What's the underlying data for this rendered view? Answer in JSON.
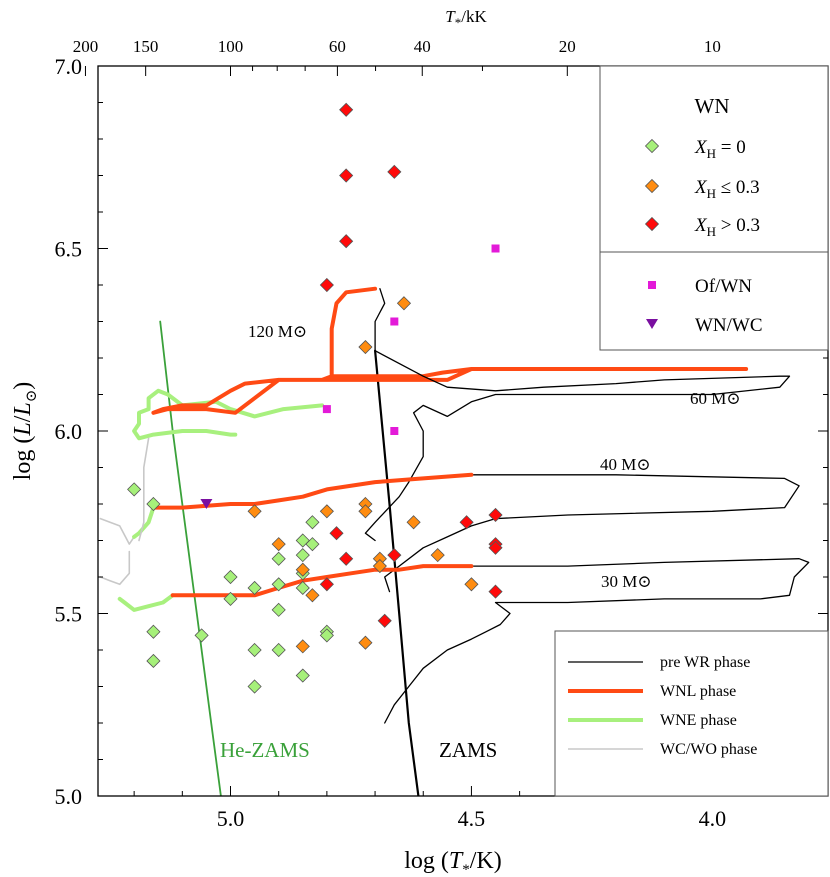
{
  "chart_data": {
    "type": "scatter",
    "title": "",
    "xlabel": "log (T*/K)",
    "ylabel": "log (L/L⊙)",
    "top_xlabel": "T*/kK",
    "xlim": [
      5.275,
      3.76
    ],
    "ylim": [
      5.0,
      7.0
    ],
    "x_ticks": [
      {
        "v": 5.0,
        "label": "5.0"
      },
      {
        "v": 4.5,
        "label": "4.5"
      },
      {
        "v": 4.0,
        "label": "4.0"
      }
    ],
    "y_ticks": [
      {
        "v": 5.0,
        "label": "5.0"
      },
      {
        "v": 5.5,
        "label": "5.5"
      },
      {
        "v": 6.0,
        "label": "6.0"
      },
      {
        "v": 6.5,
        "label": "6.5"
      },
      {
        "v": 7.0,
        "label": "7.0"
      }
    ],
    "top_ticks": [
      {
        "kK": 200,
        "label": "200"
      },
      {
        "kK": 150,
        "label": "150"
      },
      {
        "kK": 100,
        "label": "100"
      },
      {
        "kK": 60,
        "label": "60"
      },
      {
        "kK": 40,
        "label": "40"
      },
      {
        "kK": 20,
        "label": "20"
      },
      {
        "kK": 10,
        "label": "10"
      }
    ],
    "series": [
      {
        "name": "XH = 0",
        "marker": "diamond",
        "color": "#a6f07a",
        "points": [
          [
            5.2,
            5.84
          ],
          [
            5.16,
            5.8
          ],
          [
            5.16,
            5.45
          ],
          [
            5.16,
            5.37
          ],
          [
            5.06,
            5.44
          ],
          [
            5.0,
            5.6
          ],
          [
            5.0,
            5.54
          ],
          [
            4.95,
            5.57
          ],
          [
            4.95,
            5.4
          ],
          [
            4.95,
            5.3
          ],
          [
            4.9,
            5.58
          ],
          [
            4.9,
            5.51
          ],
          [
            4.9,
            5.4
          ],
          [
            4.9,
            5.65
          ],
          [
            4.85,
            5.7
          ],
          [
            4.85,
            5.66
          ],
          [
            4.85,
            5.61
          ],
          [
            4.85,
            5.57
          ],
          [
            4.85,
            5.33
          ],
          [
            4.83,
            5.75
          ],
          [
            4.83,
            5.69
          ],
          [
            4.8,
            5.45
          ],
          [
            4.8,
            5.44
          ]
        ]
      },
      {
        "name": "XH ≤ 0.3",
        "marker": "diamond",
        "color": "#ff8c10",
        "points": [
          [
            4.95,
            5.78
          ],
          [
            4.9,
            5.69
          ],
          [
            4.85,
            5.62
          ],
          [
            4.85,
            5.41
          ],
          [
            4.83,
            5.55
          ],
          [
            4.8,
            5.78
          ],
          [
            4.72,
            6.23
          ],
          [
            4.72,
            5.8
          ],
          [
            4.72,
            5.78
          ],
          [
            4.72,
            5.42
          ],
          [
            4.69,
            5.65
          ],
          [
            4.69,
            5.63
          ],
          [
            4.64,
            6.35
          ],
          [
            4.62,
            5.75
          ],
          [
            4.57,
            5.66
          ],
          [
            4.5,
            5.58
          ]
        ]
      },
      {
        "name": "XH > 0.3",
        "marker": "diamond",
        "color": "#ff0a0a",
        "points": [
          [
            4.76,
            6.88
          ],
          [
            4.76,
            6.7
          ],
          [
            4.66,
            6.71
          ],
          [
            4.76,
            6.52
          ],
          [
            4.8,
            6.4
          ],
          [
            4.78,
            5.72
          ],
          [
            4.76,
            5.65
          ],
          [
            4.8,
            5.58
          ],
          [
            4.68,
            5.48
          ],
          [
            4.66,
            5.66
          ],
          [
            4.51,
            5.75
          ],
          [
            4.45,
            5.77
          ],
          [
            4.45,
            5.69
          ],
          [
            4.45,
            5.68
          ],
          [
            4.45,
            5.56
          ]
        ]
      },
      {
        "name": "Of/WN",
        "marker": "square",
        "color": "#e31ad8",
        "points": [
          [
            4.45,
            6.5
          ],
          [
            4.66,
            6.3
          ],
          [
            4.8,
            6.06
          ],
          [
            4.66,
            6.0
          ]
        ]
      },
      {
        "name": "WN/WC",
        "marker": "triangle-down",
        "color": "#7a0fa0",
        "points": [
          [
            5.05,
            5.8
          ]
        ]
      }
    ],
    "track_styles": {
      "pre WR phase": {
        "color": "#000000",
        "width": 1.3
      },
      "WNL phase": {
        "color": "#ff4a14",
        "width": 4
      },
      "WNE phase": {
        "color": "#a8f07e",
        "width": 4
      },
      "WC/WO phase": {
        "color": "#c8c8c8",
        "width": 1.6
      }
    },
    "tracks": [
      {
        "mass": "120",
        "pre_wr": [
          [
            4.7,
            6.22
          ],
          [
            4.7,
            6.3
          ],
          [
            4.68,
            6.35
          ],
          [
            4.69,
            6.39
          ]
        ],
        "wnl": [
          [
            4.7,
            6.39
          ],
          [
            4.76,
            6.38
          ],
          [
            4.78,
            6.35
          ],
          [
            4.79,
            6.28
          ],
          [
            4.79,
            6.2
          ],
          [
            4.79,
            6.15
          ],
          [
            4.81,
            6.14
          ],
          [
            4.9,
            6.14
          ],
          [
            4.97,
            6.13
          ],
          [
            5.0,
            6.11
          ],
          [
            5.05,
            6.07
          ],
          [
            5.1,
            6.07
          ],
          [
            5.14,
            6.06
          ],
          [
            5.16,
            6.05
          ],
          [
            5.13,
            6.06
          ],
          [
            5.05,
            6.06
          ],
          [
            4.99,
            6.05
          ],
          [
            4.9,
            6.14
          ],
          [
            4.85,
            6.14
          ],
          [
            4.7,
            6.14
          ],
          [
            4.55,
            6.14
          ],
          [
            4.5,
            6.17
          ],
          [
            4.3,
            6.17
          ],
          [
            4.1,
            6.17
          ],
          [
            3.93,
            6.17
          ],
          [
            4.2,
            6.17
          ],
          [
            4.5,
            6.17
          ],
          [
            4.56,
            6.16
          ],
          [
            4.6,
            6.15
          ],
          [
            4.7,
            6.15
          ],
          [
            4.79,
            6.15
          ]
        ],
        "wne": [
          [
            4.81,
            6.07
          ],
          [
            4.89,
            6.06
          ],
          [
            4.95,
            6.04
          ],
          [
            5.0,
            6.06
          ],
          [
            5.03,
            6.08
          ],
          [
            5.1,
            6.07
          ],
          [
            5.13,
            6.1
          ],
          [
            5.15,
            6.11
          ],
          [
            5.17,
            6.09
          ],
          [
            5.17,
            6.06
          ],
          [
            5.19,
            6.05
          ],
          [
            5.19,
            6.02
          ],
          [
            5.2,
            6.0
          ],
          [
            5.19,
            5.98
          ],
          [
            5.16,
            5.99
          ],
          [
            5.1,
            6.0
          ],
          [
            5.05,
            6.0
          ],
          [
            5.0,
            5.99
          ],
          [
            4.99,
            5.99
          ]
        ]
      },
      {
        "mass": "60",
        "pre_wr": [
          [
            4.7,
            6.22
          ],
          [
            4.6,
            6.15
          ],
          [
            4.55,
            6.12
          ],
          [
            4.45,
            6.11
          ],
          [
            4.35,
            6.12
          ],
          [
            4.2,
            6.13
          ],
          [
            4.1,
            6.14
          ],
          [
            3.86,
            6.15
          ],
          [
            3.84,
            6.15
          ],
          [
            3.86,
            6.12
          ],
          [
            4.0,
            6.1
          ],
          [
            4.3,
            6.1
          ],
          [
            4.45,
            6.1
          ],
          [
            4.5,
            6.08
          ],
          [
            4.55,
            6.04
          ],
          [
            4.6,
            6.07
          ],
          [
            4.62,
            6.05
          ],
          [
            4.6,
            6.0
          ],
          [
            4.6,
            5.93
          ],
          [
            4.63,
            5.86
          ],
          [
            4.65,
            5.82
          ],
          [
            4.7,
            5.75
          ],
          [
            4.72,
            5.72
          ],
          [
            4.7,
            5.7
          ]
        ]
      },
      {
        "mass": "40",
        "pre_wr": [
          [
            4.5,
            5.88
          ],
          [
            4.2,
            5.88
          ],
          [
            3.85,
            5.87
          ],
          [
            3.82,
            5.85
          ],
          [
            3.85,
            5.79
          ],
          [
            4.0,
            5.78
          ],
          [
            4.3,
            5.77
          ],
          [
            4.45,
            5.76
          ],
          [
            4.5,
            5.74
          ],
          [
            4.55,
            5.71
          ],
          [
            4.6,
            5.68
          ],
          [
            4.65,
            5.63
          ],
          [
            4.68,
            5.6
          ],
          [
            4.67,
            5.56
          ]
        ],
        "wnl": [
          [
            5.16,
            5.79
          ],
          [
            5.1,
            5.79
          ],
          [
            5.0,
            5.8
          ],
          [
            4.95,
            5.8
          ],
          [
            4.9,
            5.81
          ],
          [
            4.85,
            5.82
          ],
          [
            4.8,
            5.84
          ],
          [
            4.7,
            5.86
          ],
          [
            4.6,
            5.87
          ],
          [
            4.5,
            5.88
          ]
        ],
        "wne": [
          [
            5.16,
            5.79
          ],
          [
            5.17,
            5.75
          ],
          [
            5.19,
            5.72
          ],
          [
            5.2,
            5.71
          ]
        ],
        "wc": [
          [
            5.2,
            5.71
          ],
          [
            5.21,
            5.69
          ],
          [
            5.23,
            5.74
          ],
          [
            5.25,
            5.75
          ],
          [
            5.27,
            5.76
          ]
        ]
      },
      {
        "mass": "30",
        "pre_wr": [
          [
            4.5,
            5.63
          ],
          [
            4.3,
            5.63
          ],
          [
            4.1,
            5.64
          ],
          [
            3.82,
            5.65
          ],
          [
            3.8,
            5.64
          ],
          [
            3.83,
            5.6
          ],
          [
            3.84,
            5.55
          ],
          [
            3.9,
            5.54
          ],
          [
            4.1,
            5.54
          ],
          [
            4.3,
            5.53
          ],
          [
            4.4,
            5.53
          ],
          [
            4.45,
            5.53
          ],
          [
            4.42,
            5.5
          ],
          [
            4.44,
            5.47
          ],
          [
            4.47,
            5.45
          ],
          [
            4.5,
            5.43
          ],
          [
            4.55,
            5.4
          ],
          [
            4.6,
            5.35
          ],
          [
            4.63,
            5.3
          ],
          [
            4.66,
            5.25
          ],
          [
            4.68,
            5.2
          ]
        ],
        "wnl": [
          [
            5.12,
            5.55
          ],
          [
            5.05,
            5.55
          ],
          [
            5.0,
            5.55
          ],
          [
            4.95,
            5.55
          ],
          [
            4.9,
            5.57
          ],
          [
            4.85,
            5.59
          ],
          [
            4.8,
            5.6
          ],
          [
            4.75,
            5.61
          ],
          [
            4.7,
            5.62
          ],
          [
            4.65,
            5.62
          ],
          [
            4.6,
            5.63
          ],
          [
            4.5,
            5.63
          ]
        ],
        "wne": [
          [
            5.12,
            5.55
          ],
          [
            5.14,
            5.53
          ],
          [
            5.17,
            5.52
          ],
          [
            5.2,
            5.51
          ],
          [
            5.22,
            5.53
          ],
          [
            5.23,
            5.54
          ]
        ],
        "wc": [
          [
            5.21,
            5.67
          ],
          [
            5.21,
            5.61
          ],
          [
            5.23,
            5.58
          ],
          [
            5.25,
            5.59
          ],
          [
            5.27,
            5.6
          ]
        ]
      },
      {
        "mass": "extra",
        "wc": [
          [
            5.17,
            5.98
          ],
          [
            5.18,
            5.9
          ],
          [
            5.18,
            5.8
          ],
          [
            5.18,
            5.75
          ],
          [
            5.19,
            5.7
          ]
        ]
      }
    ],
    "zams": [
      [
        4.7,
        6.22
      ],
      [
        4.67,
        5.8
      ],
      [
        4.65,
        5.5
      ],
      [
        4.63,
        5.2
      ],
      [
        4.61,
        5.0
      ]
    ],
    "he_zams": [
      [
        5.146,
        6.3
      ],
      [
        5.12,
        6.0
      ],
      [
        5.1,
        5.8
      ],
      [
        5.07,
        5.5
      ],
      [
        5.04,
        5.2
      ],
      [
        5.02,
        5.0
      ]
    ],
    "labels": {
      "he_zams": "He-ZAMS",
      "zams": "ZAMS",
      "m120": "120 M⊙",
      "m60": "60 M⊙",
      "m40": "40 M⊙",
      "m30": "30 M⊙"
    },
    "legend_main": {
      "title": "WN",
      "entries": [
        {
          "label": "XH = 0",
          "var": "X",
          "sub": "H",
          "rest": " = 0",
          "color": "#a6f07a",
          "marker": "diamond"
        },
        {
          "label": "XH ≤ 0.3",
          "var": "X",
          "sub": "H",
          "rest": " ≤ 0.3",
          "color": "#ff8c10",
          "marker": "diamond"
        },
        {
          "label": "XH > 0.3",
          "var": "X",
          "sub": "H",
          "rest": " > 0.3",
          "color": "#ff0a0a",
          "marker": "diamond"
        },
        {
          "label": "Of/WN",
          "color": "#e31ad8",
          "marker": "square"
        },
        {
          "label": "WN/WC",
          "color": "#7a0fa0",
          "marker": "triangle-down"
        }
      ]
    },
    "legend_tracks": [
      {
        "label": "pre WR phase",
        "color": "#000000",
        "width": 1.3
      },
      {
        "label": "WNL phase",
        "color": "#ff4a14",
        "width": 4
      },
      {
        "label": "WNE phase",
        "color": "#a8f07e",
        "width": 4
      },
      {
        "label": "WC/WO phase",
        "color": "#c8c8c8",
        "width": 1.6
      }
    ],
    "colors": {
      "he_zams": "#3aa13a",
      "zams": "#000000"
    }
  }
}
